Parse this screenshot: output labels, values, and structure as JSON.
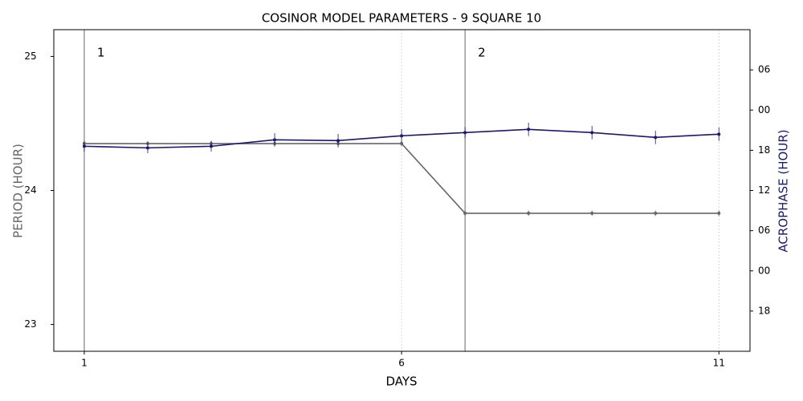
{
  "chart_data": {
    "type": "line",
    "title": "COSINOR MODEL PARAMETERS - 9 SQUARE 10",
    "xlabel": "DAYS",
    "ylabel": "PERIOD (HOUR)",
    "y2label": "ACROPHASE (HOUR)",
    "x": [
      1,
      2,
      3,
      4,
      5,
      6,
      7,
      8,
      9,
      10,
      11
    ],
    "xlim": [
      0.52,
      11.49
    ],
    "xticks": [
      1,
      6,
      11
    ],
    "ylim": [
      22.8,
      25.2
    ],
    "yticks": [
      23,
      24,
      25
    ],
    "y2lim": [
      -12,
      36
    ],
    "y2ticks": [
      {
        "value": -6,
        "label": "18"
      },
      {
        "value": 0,
        "label": "00"
      },
      {
        "value": 6,
        "label": "06"
      },
      12,
      18,
      {
        "value": 24,
        "label": "00"
      },
      {
        "value": 30,
        "label": "06"
      }
    ],
    "grid": true,
    "segments": [
      {
        "x": 1,
        "label": "1"
      },
      {
        "x": 7,
        "label": "2"
      }
    ],
    "series": [
      {
        "name": "PERIOD (HOUR)",
        "color": "#666666",
        "axis": "y",
        "values": [
          24.35,
          24.35,
          24.35,
          24.35,
          24.35,
          24.35,
          23.83,
          23.83,
          23.83,
          23.83,
          23.83
        ],
        "errors": [
          0.02,
          0.02,
          0.02,
          0.02,
          0.02,
          0.02,
          0.02,
          0.02,
          0.02,
          0.02,
          0.02
        ]
      },
      {
        "name": "ACROPHASE (HOUR)",
        "color": "#191970",
        "axis": "y2",
        "values": [
          18.6,
          18.36,
          18.6,
          19.56,
          19.44,
          20.16,
          20.64,
          21.12,
          20.64,
          19.92,
          20.4
        ],
        "errors": [
          0.8,
          0.8,
          0.8,
          1.0,
          1.0,
          1.0,
          0.8,
          1.0,
          1.0,
          1.0,
          1.0
        ]
      }
    ]
  }
}
